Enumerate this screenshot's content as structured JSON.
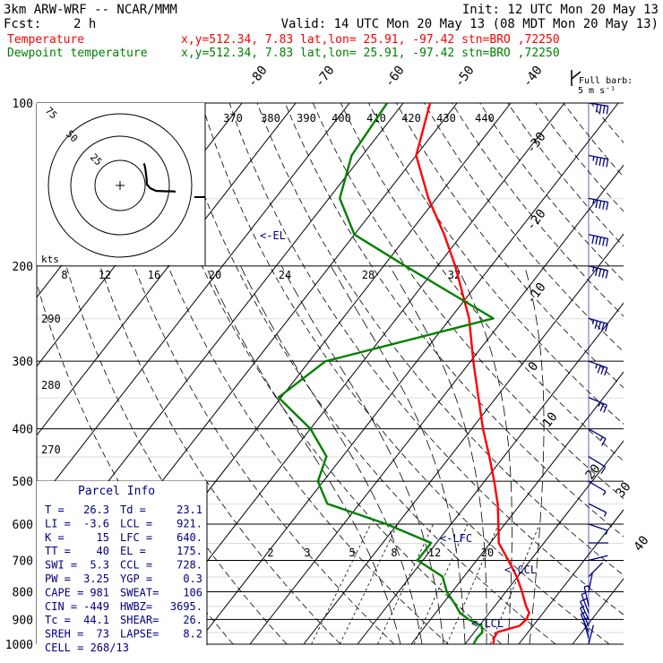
{
  "header": {
    "title": "3km ARW-WRF -- NCAR/MMM",
    "init": "Init: 12 UTC Mon 20 May 13",
    "fcst_label": "Fcst:",
    "fcst_value": "2 h",
    "valid": "Valid: 14 UTC Mon 20 May 13 (08 MDT Mon 20 May 13)",
    "temperature_label": "Temperature",
    "temperature_info": "x,y=512.34,  7.83   lat,lon= 25.91, -97.42  stn=BRO ,72250",
    "dewpoint_label": "Dewpoint temperature",
    "dewpoint_info": "x,y=512.34,  7.83   lat,lon= 25.91, -97.42  stn=BRO ,72250"
  },
  "barb_legend": {
    "line1": "Full barb:",
    "line2": "5 m s⁻¹"
  },
  "hodograph": {
    "units": "kts",
    "rings": [
      "75",
      "50",
      "25"
    ],
    "speed_labels": [
      "8",
      "12",
      "16",
      "20",
      "24",
      "28",
      "32"
    ],
    "theta_labels": [
      "370",
      "380",
      "390",
      "400",
      "410",
      "420",
      "430",
      "440"
    ],
    "theta_side_labels": [
      "290",
      "280",
      "270"
    ]
  },
  "parcel_info": {
    "title": "Parcel Info",
    "rows": [
      [
        "T    =",
        "26.3",
        "Td =",
        "23.1"
      ],
      [
        "LI   =",
        "-3.6",
        "LCL =",
        "921."
      ],
      [
        "K    =",
        "15",
        "LFC =",
        "640."
      ],
      [
        "TT   =",
        "40",
        "EL =",
        "175."
      ],
      [
        "SWI  =",
        "5.3",
        "CCL =",
        "728."
      ],
      [
        "PW   =",
        "3.25",
        "YGP =",
        "0.3"
      ],
      [
        "CAPE =",
        "981",
        "SWEAT=",
        "106"
      ],
      [
        "CIN  =",
        "-449",
        "HWBZ=",
        "3695."
      ],
      [
        "Tc   =",
        "44.1",
        "SHEAR=",
        "26."
      ],
      [
        "SREH =",
        "73",
        "LAPSE=",
        "8.2"
      ]
    ],
    "cell": "CELL = 268/13"
  },
  "chart_data": {
    "type": "line",
    "title": "3km ARW-WRF -- NCAR/MMM",
    "xlabel": "",
    "ylabel": "",
    "pressure_levels": [
      100,
      200,
      300,
      400,
      500,
      600,
      700,
      800,
      900,
      1000
    ],
    "pressure_labels": [
      "100",
      "200",
      "300",
      "400",
      "500",
      "600",
      "700",
      "800",
      "900",
      "1000"
    ],
    "isotherm_labels": [
      "-80",
      "-70",
      "-60",
      "-50",
      "-40",
      "-30",
      "-20",
      "-10",
      "0",
      "10",
      "20",
      "30",
      "40"
    ],
    "mixing_ratio_labels": [
      "2",
      "3",
      "5",
      "8",
      "12",
      "20"
    ],
    "level_labels": [
      "<-EL",
      "<-LFC",
      "<-CCL",
      "<-LCL"
    ],
    "series": [
      {
        "name": "Temperature",
        "color": "#ff0000",
        "points": [
          [
            1000,
            25.3
          ],
          [
            975,
            24.5
          ],
          [
            950,
            24.3
          ],
          [
            925,
            27.5
          ],
          [
            900,
            27.8
          ],
          [
            875,
            27.4
          ],
          [
            850,
            25.8
          ],
          [
            800,
            23.0
          ],
          [
            750,
            19.8
          ],
          [
            700,
            15.9
          ],
          [
            650,
            11.6
          ],
          [
            600,
            8.8
          ],
          [
            550,
            5.7
          ],
          [
            500,
            1.8
          ],
          [
            450,
            -2.7
          ],
          [
            400,
            -7.9
          ],
          [
            350,
            -13.3
          ],
          [
            300,
            -19.5
          ],
          [
            250,
            -26.5
          ],
          [
            200,
            -36.7
          ],
          [
            175,
            -43.3
          ],
          [
            150,
            -51.5
          ],
          [
            125,
            -60.0
          ],
          [
            100,
            -65.0
          ]
        ]
      },
      {
        "name": "Dewpoint temperature",
        "color": "#008000",
        "points": [
          [
            1000,
            21.6
          ],
          [
            975,
            21.3
          ],
          [
            950,
            21.5
          ],
          [
            925,
            20.4
          ],
          [
            900,
            17.1
          ],
          [
            875,
            14.5
          ],
          [
            850,
            12.8
          ],
          [
            800,
            9.0
          ],
          [
            750,
            6.0
          ],
          [
            700,
            -1.0
          ],
          [
            650,
            -1.0
          ],
          [
            600,
            -12.0
          ],
          [
            550,
            -26.0
          ],
          [
            500,
            -31.0
          ],
          [
            450,
            -33.0
          ],
          [
            400,
            -40.0
          ],
          [
            350,
            -50.5
          ],
          [
            300,
            -47.0
          ],
          [
            250,
            -22.0
          ],
          [
            200,
            -46.0
          ],
          [
            175,
            -60.0
          ],
          [
            150,
            -68.0
          ],
          [
            125,
            -72.0
          ],
          [
            100,
            -73.0
          ]
        ]
      }
    ],
    "hodograph_trace": [
      [
        23.8,
        -2.7
      ],
      [
        22.5,
        -2.5
      ],
      [
        19.4,
        -2.5
      ],
      [
        15.4,
        -2.3
      ],
      [
        13.0,
        -1.2
      ],
      [
        11.5,
        0.5
      ],
      [
        11.4,
        3.0
      ],
      [
        11.0,
        6.0
      ],
      [
        10.8,
        7.5
      ],
      [
        10.3,
        9.5
      ]
    ],
    "wind_barbs": [
      [
        1000,
        -0.3,
        -1.2
      ],
      [
        975,
        0.6,
        -2.1
      ],
      [
        950,
        1.2,
        -2.8
      ],
      [
        925,
        1.5,
        -3.2
      ],
      [
        900,
        1.6,
        -3.4
      ],
      [
        875,
        1.0,
        -2.6
      ],
      [
        850,
        0.4,
        -1.8
      ],
      [
        800,
        -0.2,
        -1.0
      ],
      [
        750,
        -0.5,
        -0.5
      ],
      [
        700,
        -0.8,
        -0.2
      ],
      [
        650,
        -1.0,
        0.0
      ],
      [
        600,
        -1.5,
        0.5
      ],
      [
        550,
        -2.0,
        1.0
      ],
      [
        500,
        -2.5,
        1.5
      ],
      [
        450,
        -4.0,
        2.5
      ],
      [
        400,
        -7.0,
        4.0
      ],
      [
        350,
        -12.0,
        5.0
      ],
      [
        300,
        -17.0,
        6.0
      ],
      [
        250,
        -21.0,
        6.0
      ],
      [
        200,
        -23.0,
        5.5
      ],
      [
        175,
        -23.5,
        5.0
      ],
      [
        150,
        -23.0,
        4.5
      ],
      [
        125,
        -21.0,
        4.0
      ],
      [
        100,
        -19.0,
        3.0
      ]
    ]
  }
}
